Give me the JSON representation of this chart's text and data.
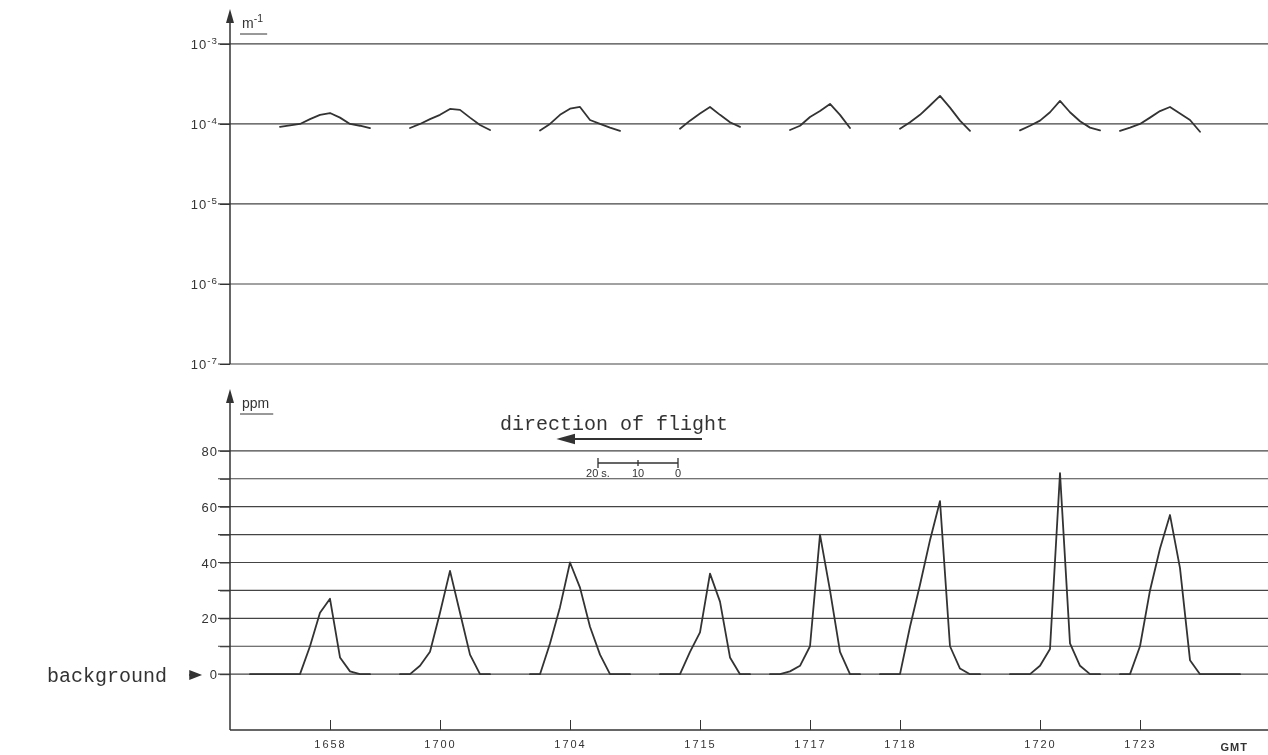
{
  "chart_data": [
    {
      "type": "line",
      "ylabel": "m$^{-1}$",
      "log": "y",
      "grid": "y",
      "tick_labels": "y",
      "marker": "none",
      "line_style": "solid",
      "categories": [
        null,
        null,
        null,
        null,
        null,
        null,
        null,
        null,
        null,
        null,
        "1658",
        null,
        null,
        null,
        null,
        null,
        null,
        null,
        null,
        null,
        null,
        "1700",
        null,
        null,
        null,
        null,
        null,
        null,
        null,
        null,
        null,
        null,
        null,
        null,
        "1704",
        null,
        null,
        null,
        null,
        null,
        null,
        null,
        null,
        null,
        null,
        null,
        null,
        "1715",
        null,
        null,
        null,
        null,
        null,
        null,
        null,
        null,
        null,
        null,
        "1717",
        null,
        null,
        null,
        null,
        null,
        null,
        null,
        null,
        "1718",
        null,
        null,
        null,
        null,
        null,
        null,
        null,
        null,
        null,
        null,
        null,
        null,
        null,
        "1720",
        null,
        null,
        null,
        null,
        null,
        null,
        null,
        null,
        null,
        "1723",
        null,
        null,
        null,
        null,
        null,
        null,
        null,
        null,
        null,
        null,
        null,
        null
      ],
      "ylim": [
        1e-07,
        0.0023
      ],
      "yticks": [
        {
          "value": 1e-07,
          "label": "10$^{-7}$"
        },
        {
          "value": 1e-06,
          "label": "10$^{-6}$"
        },
        {
          "value": 1e-05,
          "label": "10$^{-5}$"
        },
        {
          "value": 0.0001,
          "label": "10$^{-4}$"
        },
        {
          "value": 0.001,
          "label": "10$^{-3}$"
        }
      ],
      "series": [
        {
          "color": "#333333",
          "values": [
            null,
            null,
            null,
            null,
            null,
            9.2e-05,
            9.6e-05,
            0.0001,
            0.000115,
            0.00013,
            0.000137,
            0.00012,
            0.0001,
            9.5e-05,
            8.9e-05,
            null,
            null,
            null,
            8.9e-05,
            0.0001,
            0.000115,
            0.00013,
            0.000154,
            0.00015,
            0.00012,
            9.7e-05,
            8.4e-05,
            null,
            null,
            null,
            null,
            8.3e-05,
            0.0001,
            0.00013,
            0.000155,
            0.000163,
            0.000112,
            0.0001,
            9e-05,
            8.2e-05,
            null,
            null,
            null,
            null,
            null,
            8.7e-05,
            0.00011,
            0.000135,
            0.000163,
            0.00013,
            0.000105,
            9.2e-05,
            null,
            null,
            null,
            null,
            8.4e-05,
            9.5e-05,
            0.000122,
            0.000145,
            0.000178,
            0.00013,
            8.9e-05,
            null,
            null,
            null,
            null,
            8.7e-05,
            0.000105,
            0.00013,
            0.00017,
            0.000224,
            0.00016,
            0.00011,
            8.2e-05,
            null,
            null,
            null,
            null,
            8.3e-05,
            9.5e-05,
            0.00011,
            0.00014,
            0.000194,
            0.00014,
            0.000108,
            9e-05,
            8.3e-05,
            null,
            8.2e-05,
            9e-05,
            0.0001,
            0.00012,
            0.000145,
            0.000163,
            0.000135,
            0.000112,
            8e-05,
            null,
            null,
            null,
            null,
            null,
            null
          ]
        }
      ]
    },
    {
      "type": "line",
      "ylabel": "ppm",
      "xlabel": "GMT",
      "grid": "y",
      "marker": "none",
      "line_style": "solid",
      "categories": [
        null,
        null,
        null,
        null,
        null,
        null,
        null,
        null,
        null,
        null,
        "1658",
        null,
        null,
        null,
        null,
        null,
        null,
        null,
        null,
        null,
        null,
        "1700",
        null,
        null,
        null,
        null,
        null,
        null,
        null,
        null,
        null,
        null,
        null,
        null,
        "1704",
        null,
        null,
        null,
        null,
        null,
        null,
        null,
        null,
        null,
        null,
        null,
        null,
        "1715",
        null,
        null,
        null,
        null,
        null,
        null,
        null,
        null,
        null,
        null,
        "1717",
        null,
        null,
        null,
        null,
        null,
        null,
        null,
        null,
        "1718",
        null,
        null,
        null,
        null,
        null,
        null,
        null,
        null,
        null,
        null,
        null,
        null,
        null,
        "1720",
        null,
        null,
        null,
        null,
        null,
        null,
        null,
        null,
        null,
        "1723",
        null,
        null,
        null,
        null,
        null,
        null,
        null,
        null,
        null,
        null,
        null,
        null
      ],
      "ylim": [
        -20,
        100
      ],
      "yticks": [
        0,
        {
          "value": 10,
          "label": null
        },
        20,
        {
          "value": 30,
          "label": null
        },
        40,
        {
          "value": 50,
          "label": null
        },
        60,
        {
          "value": 70,
          "label": null
        },
        80
      ],
      "annotations": [
        "direction of flight",
        "20 s.",
        "10",
        "0",
        "background"
      ],
      "series": [
        {
          "color": "#333333",
          "values": [
            null,
            null,
            0,
            0,
            0,
            0,
            0,
            0,
            10,
            22,
            27,
            6,
            1,
            0,
            0,
            null,
            null,
            0,
            0,
            3,
            8,
            22,
            37,
            22,
            7,
            0,
            0,
            null,
            null,
            null,
            0,
            0,
            11,
            24,
            40,
            31,
            17,
            7,
            0,
            0,
            0,
            null,
            null,
            0,
            0,
            0,
            8,
            15,
            36,
            26,
            6,
            0,
            0,
            null,
            0,
            0,
            1,
            3,
            10,
            50,
            30,
            8,
            0,
            0,
            null,
            0,
            0,
            0,
            17,
            32,
            48,
            62,
            10,
            2,
            0,
            0,
            null,
            null,
            0,
            0,
            0,
            3,
            9,
            72,
            11,
            3,
            0,
            0,
            null,
            0,
            0,
            10,
            30,
            45,
            57,
            38,
            5,
            0,
            0,
            0,
            0,
            0,
            null,
            null
          ]
        }
      ]
    }
  ]
}
